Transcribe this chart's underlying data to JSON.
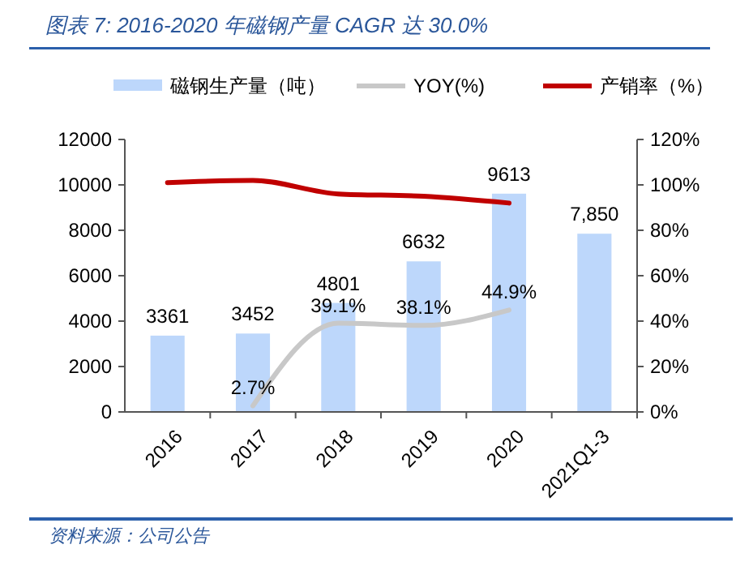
{
  "chart_data": {
    "type": "bar",
    "title": "图表 7:  2016-2020 年磁钢产量 CAGR 达 30.0%",
    "categories": [
      "2016",
      "2017",
      "2018",
      "2019",
      "2020",
      "2021Q1-3"
    ],
    "series": [
      {
        "name": "磁钢生产量（吨）",
        "color": "#bdd7fb",
        "values": [
          3361,
          3452,
          4801,
          6632,
          9613,
          7850
        ],
        "value_labels": [
          "3361",
          "3452",
          "4801",
          "6632",
          "9613",
          "7,850"
        ]
      },
      {
        "name": "YOY(%)",
        "type": "line",
        "axis": "y2",
        "color": "#c8c8c8",
        "values": [
          null,
          2.7,
          39.1,
          38.1,
          44.9,
          null
        ],
        "value_labels": [
          null,
          "2.7%",
          "39.1%",
          "38.1%",
          "44.9%",
          null
        ]
      },
      {
        "name": "产销率（%）",
        "type": "line",
        "axis": "y2",
        "color": "#c00000",
        "values": [
          101,
          102,
          96,
          95,
          92,
          null
        ]
      }
    ],
    "ylim": [
      0,
      12000
    ],
    "yticks": [
      0,
      2000,
      4000,
      6000,
      8000,
      10000,
      12000
    ],
    "y2lim": [
      0,
      120
    ],
    "y2ticks": [
      {
        "value": 0,
        "label": "0%"
      },
      {
        "value": 20,
        "label": "20%"
      },
      {
        "value": 40,
        "label": "40%"
      },
      {
        "value": 60,
        "label": "60%"
      },
      {
        "value": 80,
        "label": "80%"
      },
      {
        "value": 100,
        "label": "100%"
      },
      {
        "value": 120,
        "label": "120%"
      }
    ],
    "legend": "top",
    "grid": false,
    "annotations": [
      "资料来源：公司公告"
    ]
  }
}
